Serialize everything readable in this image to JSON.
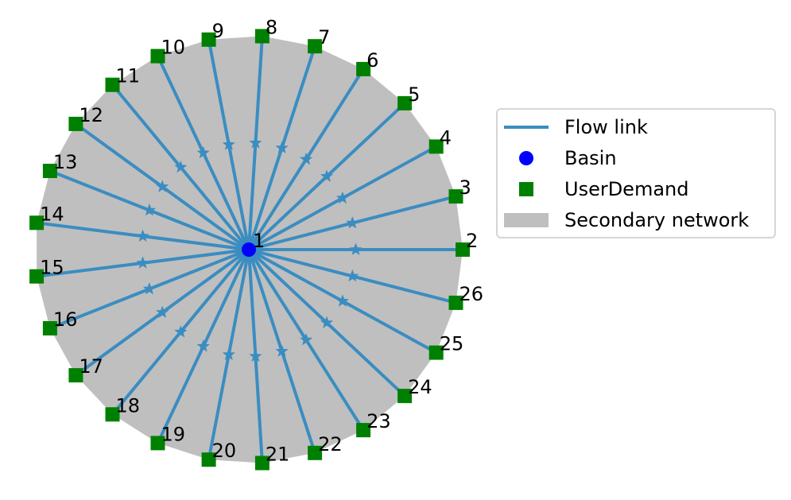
{
  "colors": {
    "flow_link": "#3a8dc1",
    "basin": "#0000ff",
    "user_demand": "#008000",
    "secondary_network": "#bfbfbf"
  },
  "center_node": {
    "label": "1"
  },
  "user_demand_nodes": [
    "2",
    "3",
    "4",
    "5",
    "6",
    "7",
    "8",
    "9",
    "10",
    "11",
    "12",
    "13",
    "14",
    "15",
    "16",
    "17",
    "18",
    "19",
    "20",
    "21",
    "22",
    "23",
    "24",
    "25",
    "26"
  ],
  "legend": {
    "flow_link": "Flow link",
    "basin": "Basin",
    "user_demand": "UserDemand",
    "secondary_network": "Secondary network"
  }
}
